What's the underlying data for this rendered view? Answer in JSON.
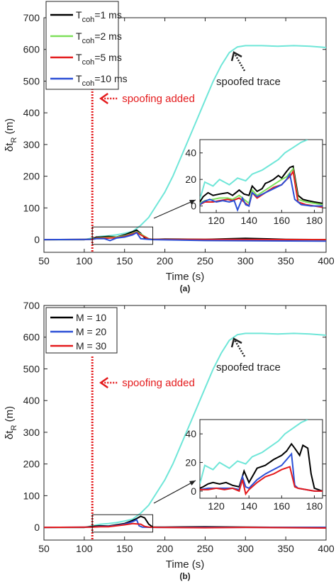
{
  "chart_data": [
    {
      "panel_label": "(a)",
      "type": "line",
      "xlabel": "Time (s)",
      "ylabel_main": "δt",
      "ylabel_sub": "R",
      "ylabel_unit": "(m)",
      "xlim": [
        50,
        400
      ],
      "ylim": [
        -40,
        700
      ],
      "xticks": [
        50,
        100,
        150,
        200,
        250,
        300,
        350,
        400
      ],
      "yticks": [
        0,
        100,
        200,
        300,
        400,
        500,
        600,
        700
      ],
      "legend_position": "top-left",
      "legend": [
        {
          "main": "T",
          "sub": "coh",
          "rest": "=1 ms",
          "color": "#000000"
        },
        {
          "main": "T",
          "sub": "coh",
          "rest": "=2 ms",
          "color": "#7ee05a"
        },
        {
          "main": "T",
          "sub": "coh",
          "rest": "=5 ms",
          "color": "#e41a1c"
        },
        {
          "main": "T",
          "sub": "coh",
          "rest": "=10 ms",
          "color": "#2b4fd6"
        }
      ],
      "spoofed": {
        "color": "#6fe6d8",
        "x": [
          50,
          100,
          110,
          120,
          130,
          140,
          150,
          160,
          170,
          180,
          190,
          200,
          210,
          220,
          230,
          240,
          250,
          260,
          270,
          280,
          290,
          300,
          320,
          340,
          360,
          380,
          400
        ],
        "y": [
          0,
          0,
          5,
          10,
          12,
          15,
          20,
          26,
          45,
          70,
          110,
          150,
          200,
          260,
          320,
          380,
          440,
          500,
          550,
          590,
          608,
          612,
          612,
          610,
          612,
          610,
          606
        ]
      },
      "series": [
        {
          "name": "T_coh=1 ms",
          "color": "#000000",
          "x": [
            50,
            100,
            110,
            115,
            120,
            130,
            140,
            150,
            155,
            160,
            165,
            170,
            175,
            180,
            185,
            200,
            250,
            300,
            350,
            400
          ],
          "y": [
            0,
            0,
            2,
            8,
            8,
            10,
            8,
            15,
            20,
            25,
            30,
            20,
            5,
            2,
            1,
            2,
            1,
            4,
            1,
            0
          ]
        },
        {
          "name": "T_coh=2 ms",
          "color": "#7ee05a",
          "x": [
            50,
            110,
            115,
            130,
            140,
            150,
            160,
            165,
            170,
            180,
            185,
            400
          ],
          "y": [
            0,
            1,
            5,
            7,
            8,
            12,
            20,
            25,
            18,
            3,
            1,
            0
          ]
        },
        {
          "name": "T_coh=5 ms",
          "color": "#e41a1c",
          "x": [
            50,
            110,
            115,
            130,
            140,
            150,
            160,
            165,
            170,
            180,
            185,
            400
          ],
          "y": [
            0,
            1,
            4,
            5,
            6,
            10,
            18,
            23,
            15,
            2,
            1,
            0
          ]
        },
        {
          "name": "T_coh=10 ms",
          "color": "#2b4fd6",
          "x": [
            50,
            110,
            115,
            125,
            132,
            140,
            150,
            160,
            165,
            170,
            180,
            185,
            250,
            400
          ],
          "y": [
            0,
            1,
            3,
            3,
            -3,
            5,
            8,
            15,
            22,
            3,
            1,
            0,
            -3,
            -5
          ]
        }
      ],
      "spoof_line_x": 110,
      "annotations": {
        "spoofing_text": "spoofing added",
        "spoofed_text": "spoofed trace"
      },
      "inset": {
        "xlim": [
          110,
          185
        ],
        "ylim": [
          -5,
          50
        ],
        "xticks": [
          120,
          140,
          160,
          180
        ],
        "yticks": [
          0,
          20,
          40
        ],
        "zoom_box": {
          "x": [
            110,
            185
          ],
          "y": [
            -15,
            40
          ]
        },
        "series": [
          {
            "name": "spoofed trace",
            "color": "#6fe6d8",
            "x": [
              110,
              113,
              118,
              122,
              128,
              133,
              138,
              142,
              148,
              153,
              158,
              162,
              167,
              172,
              176
            ],
            "y": [
              5,
              18,
              15,
              20,
              16,
              21,
              19,
              24,
              27,
              31,
              35,
              40,
              44,
              48,
              50
            ]
          },
          {
            "name": "T_coh=1 ms",
            "color": "#000000",
            "x": [
              110,
              112,
              115,
              118,
              122,
              127,
              130,
              134,
              137,
              140,
              142,
              145,
              148,
              150,
              152,
              155,
              158,
              160,
              163,
              165,
              167,
              170,
              173,
              176,
              180,
              185
            ],
            "y": [
              3,
              7,
              10,
              8,
              9,
              10,
              8,
              12,
              9,
              8,
              15,
              11,
              13,
              17,
              18,
              20,
              23,
              21,
              26,
              29,
              30,
              8,
              5,
              4,
              3,
              2
            ]
          },
          {
            "name": "T_coh=2 ms",
            "color": "#7ee05a",
            "x": [
              110,
              113,
              118,
              122,
              127,
              130,
              134,
              137,
              140,
              142,
              145,
              150,
              155,
              160,
              163,
              165,
              167,
              170,
              175,
              180,
              185
            ],
            "y": [
              2,
              4,
              5,
              6,
              6,
              5,
              8,
              5,
              2,
              12,
              8,
              12,
              16,
              20,
              22,
              25,
              28,
              5,
              3,
              2,
              1
            ]
          },
          {
            "name": "T_coh=5 ms",
            "color": "#e41a1c",
            "x": [
              110,
              113,
              118,
              122,
              127,
              130,
              134,
              137,
              140,
              142,
              145,
              150,
              155,
              160,
              163,
              165,
              167,
              170,
              175,
              180,
              185
            ],
            "y": [
              1,
              3,
              3,
              4,
              5,
              4,
              6,
              3,
              0,
              10,
              6,
              10,
              14,
              16,
              20,
              22,
              26,
              3,
              1,
              0,
              -1
            ]
          },
          {
            "name": "T_coh=10 ms",
            "color": "#2b4fd6",
            "x": [
              110,
              112,
              116,
              120,
              124,
              128,
              131,
              133,
              136,
              138,
              140,
              142,
              145,
              150,
              155,
              160,
              163,
              165,
              168,
              172,
              178,
              185
            ],
            "y": [
              1,
              3,
              5,
              3,
              4,
              3,
              4,
              -3,
              6,
              1,
              0,
              10,
              7,
              10,
              13,
              16,
              20,
              24,
              5,
              1,
              0,
              0
            ]
          }
        ]
      }
    },
    {
      "panel_label": "(b)",
      "type": "line",
      "xlabel": "Time (s)",
      "ylabel_main": "δt",
      "ylabel_sub": "R",
      "ylabel_unit": "(m)",
      "xlim": [
        50,
        400
      ],
      "ylim": [
        -40,
        700
      ],
      "xticks": [
        50,
        100,
        150,
        200,
        250,
        300,
        350,
        400
      ],
      "yticks": [
        0,
        100,
        200,
        300,
        400,
        500,
        600,
        700
      ],
      "legend_position": "top-left",
      "legend": [
        {
          "main": "M = 10",
          "sub": "",
          "rest": "",
          "color": "#000000"
        },
        {
          "main": "M = 20",
          "sub": "",
          "rest": "",
          "color": "#2b4fd6"
        },
        {
          "main": "M = 30",
          "sub": "",
          "rest": "",
          "color": "#e41a1c"
        }
      ],
      "spoofed": {
        "color": "#6fe6d8",
        "x": [
          50,
          100,
          110,
          120,
          130,
          140,
          150,
          160,
          170,
          180,
          190,
          200,
          210,
          220,
          230,
          240,
          250,
          260,
          270,
          280,
          290,
          300,
          320,
          340,
          360,
          380,
          400
        ],
        "y": [
          0,
          0,
          5,
          10,
          12,
          15,
          20,
          26,
          45,
          70,
          110,
          150,
          200,
          260,
          320,
          380,
          440,
          500,
          550,
          590,
          608,
          612,
          612,
          610,
          612,
          610,
          606
        ]
      },
      "series": [
        {
          "name": "M = 10",
          "color": "#000000",
          "x": [
            50,
            100,
            110,
            120,
            130,
            140,
            150,
            160,
            165,
            170,
            175,
            180,
            185,
            200,
            250,
            300,
            350,
            400
          ],
          "y": [
            0,
            0,
            3,
            5,
            4,
            8,
            12,
            22,
            28,
            35,
            30,
            10,
            1,
            1,
            2,
            1,
            0,
            0
          ]
        },
        {
          "name": "M = 20",
          "color": "#2b4fd6",
          "x": [
            50,
            110,
            120,
            130,
            140,
            150,
            160,
            165,
            168,
            172,
            185,
            400
          ],
          "y": [
            0,
            1,
            3,
            3,
            6,
            10,
            18,
            24,
            5,
            1,
            0,
            0
          ]
        },
        {
          "name": "M = 30",
          "color": "#e41a1c",
          "x": [
            50,
            110,
            120,
            130,
            140,
            150,
            160,
            170,
            175,
            180,
            190,
            250,
            300,
            400
          ],
          "y": [
            0,
            1,
            2,
            2,
            5,
            8,
            12,
            10,
            3,
            1,
            0,
            -1,
            0,
            -2
          ]
        }
      ],
      "spoof_line_x": 110,
      "annotations": {
        "spoofing_text": "spoofing added",
        "spoofed_text": "spoofed trace"
      },
      "inset": {
        "xlim": [
          110,
          185
        ],
        "ylim": [
          -5,
          50
        ],
        "xticks": [
          120,
          140,
          160,
          180
        ],
        "yticks": [
          0,
          20,
          40
        ],
        "zoom_box": {
          "x": [
            110,
            185
          ],
          "y": [
            -15,
            40
          ]
        },
        "series": [
          {
            "name": "spoofed trace",
            "color": "#6fe6d8",
            "x": [
              110,
              113,
              118,
              122,
              128,
              133,
              138,
              142,
              148,
              153,
              158,
              162,
              167,
              172,
              176
            ],
            "y": [
              5,
              18,
              15,
              20,
              16,
              21,
              19,
              24,
              27,
              31,
              35,
              40,
              44,
              48,
              50
            ]
          },
          {
            "name": "M = 10",
            "color": "#000000",
            "x": [
              110,
              112,
              115,
              118,
              122,
              126,
              130,
              134,
              137,
              140,
              142,
              145,
              150,
              155,
              160,
              163,
              166,
              168,
              171,
              173,
              176,
              178,
              180,
              185
            ],
            "y": [
              2,
              3,
              5,
              6,
              5,
              6,
              4,
              3,
              14,
              6,
              10,
              16,
              18,
              22,
              25,
              28,
              33,
              30,
              25,
              32,
              30,
              12,
              2,
              0
            ]
          },
          {
            "name": "M = 20",
            "color": "#2b4fd6",
            "x": [
              110,
              115,
              120,
              125,
              130,
              134,
              136,
              138,
              140,
              145,
              150,
              155,
              160,
              163,
              166,
              168,
              170,
              175,
              180,
              185
            ],
            "y": [
              1,
              2,
              2,
              2,
              2,
              1,
              10,
              3,
              2,
              8,
              12,
              15,
              18,
              22,
              26,
              4,
              2,
              1,
              0,
              0
            ]
          },
          {
            "name": "M = 30",
            "color": "#e41a1c",
            "x": [
              110,
              115,
              120,
              125,
              130,
              134,
              136,
              138,
              140,
              145,
              150,
              155,
              160,
              165,
              168,
              170,
              175,
              180,
              185
            ],
            "y": [
              1,
              1,
              2,
              1,
              2,
              0,
              8,
              -2,
              1,
              6,
              10,
              12,
              15,
              17,
              3,
              2,
              1,
              0,
              0
            ]
          }
        ]
      }
    }
  ]
}
